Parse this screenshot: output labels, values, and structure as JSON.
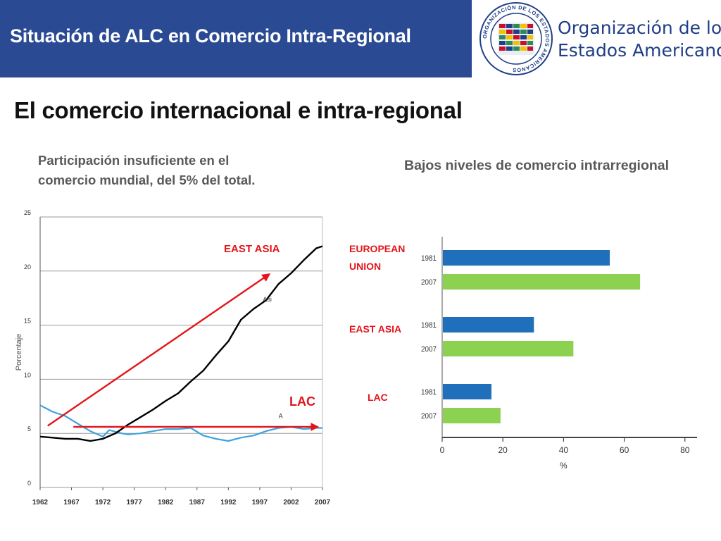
{
  "header": {
    "title": "Situación de ALC en Comercio Intra-Regional",
    "org_line1": "Organización de los",
    "org_line2": "Estados Americanos",
    "seal_text": "ORGANIZACIÓN DE LOS ESTADOS AMERICANOS"
  },
  "main": {
    "title": "El comercio internacional e intra-regional",
    "left_caption_line1": "Participación insuficiente en el",
    "left_caption_line2": "comercio mundial, del 5% del total.",
    "right_caption": "Bajos niveles de comercio intrarregional"
  },
  "colors": {
    "header_blue": "#2a4a94",
    "org_text": "#1f3f86",
    "annotation_red": "#e3141b",
    "lac_line": "#3ba3e0",
    "asia_line": "#000000",
    "bar_1981": "#1f6fba",
    "bar_2007": "#8cd14f"
  },
  "chart_data": [
    {
      "type": "line",
      "ylabel": "Porcentaje",
      "ylim": [
        0,
        25
      ],
      "xlim": [
        1962,
        2007
      ],
      "yticks": [
        "0",
        "5",
        "10",
        "15",
        "20",
        "25"
      ],
      "xticks": [
        "1962",
        "1967",
        "1972",
        "1977",
        "1982",
        "1987",
        "1992",
        "1997",
        "2002",
        "2007"
      ],
      "series": [
        {
          "name": "Asi",
          "x": [
            1962,
            1964,
            1966,
            1968,
            1970,
            1972,
            1974,
            1976,
            1978,
            1980,
            1982,
            1984,
            1986,
            1988,
            1990,
            1992,
            1994,
            1996,
            1998,
            2000,
            2002,
            2004,
            2006,
            2007
          ],
          "values": [
            4.7,
            4.6,
            4.5,
            4.5,
            4.3,
            4.5,
            5.0,
            5.8,
            6.5,
            7.2,
            8.0,
            8.7,
            9.8,
            10.8,
            12.2,
            13.5,
            15.5,
            16.5,
            17.3,
            18.8,
            19.8,
            21.0,
            22.1,
            22.3
          ]
        },
        {
          "name": "A",
          "x": [
            1962,
            1964,
            1966,
            1968,
            1970,
            1972,
            1973,
            1975,
            1976,
            1978,
            1980,
            1982,
            1984,
            1986,
            1988,
            1990,
            1992,
            1994,
            1996,
            1998,
            2000,
            2002,
            2004,
            2006,
            2007
          ],
          "values": [
            7.6,
            7.0,
            6.6,
            5.9,
            5.2,
            4.7,
            5.3,
            5.0,
            4.9,
            5.0,
            5.2,
            5.4,
            5.4,
            5.5,
            4.8,
            4.5,
            4.3,
            4.6,
            4.8,
            5.2,
            5.5,
            5.6,
            5.4,
            5.5,
            5.5
          ]
        }
      ],
      "annotations": [
        {
          "text": "EAST ASIA"
        },
        {
          "text": "LAC"
        }
      ]
    },
    {
      "type": "bar",
      "orientation": "horizontal",
      "xlabel": "%",
      "xlim": [
        0,
        80
      ],
      "xticks": [
        "0",
        "20",
        "40",
        "60",
        "80"
      ],
      "groups": [
        {
          "label": "EUROPEAN UNION",
          "label_line1": "EUROPEAN",
          "label_line2": "UNION",
          "bars": [
            {
              "year": "1981",
              "value": 55
            },
            {
              "year": "2007",
              "value": 65
            }
          ]
        },
        {
          "label": "EAST ASIA",
          "bars": [
            {
              "year": "1981",
              "value": 30
            },
            {
              "year": "2007",
              "value": 43
            }
          ]
        },
        {
          "label": "LAC",
          "bars": [
            {
              "year": "1981",
              "value": 16
            },
            {
              "year": "2007",
              "value": 19
            }
          ]
        }
      ]
    }
  ]
}
